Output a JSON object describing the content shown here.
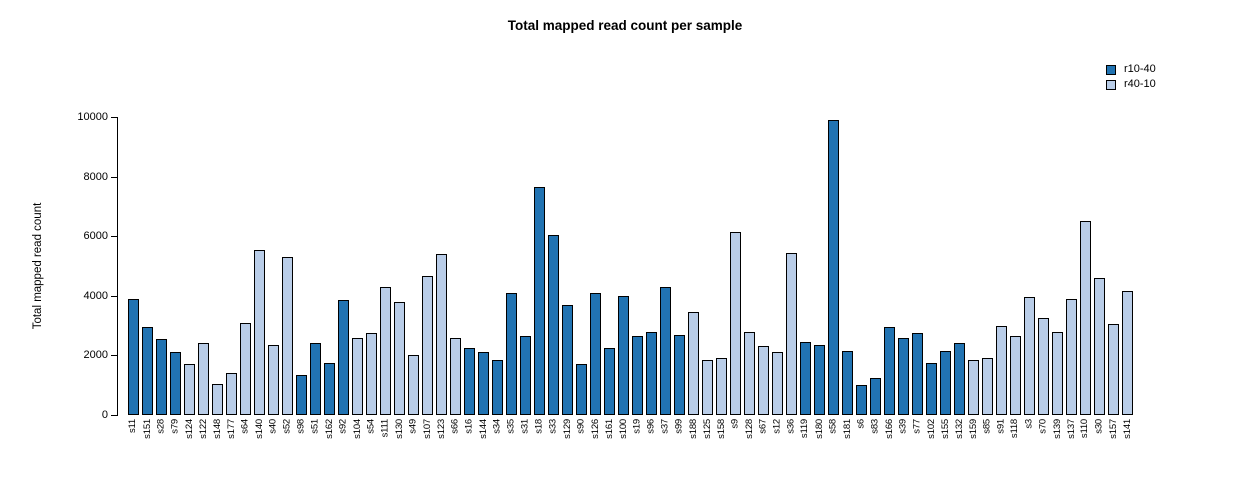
{
  "chart_data": {
    "type": "bar",
    "title": "Total mapped read count per sample",
    "xlabel": "",
    "ylabel": "Total mapped read count",
    "ylim": [
      0,
      10000
    ],
    "yticks": [
      0,
      2000,
      4000,
      6000,
      8000,
      10000
    ],
    "grid": false,
    "legend_position": "top-right",
    "legend": [
      {
        "label": "r10-40",
        "color": "#2173b2"
      },
      {
        "label": "r40-10",
        "color": "#b9cde8"
      }
    ],
    "bar_border_color": "#000000",
    "bars": [
      {
        "label": "s11",
        "value": 3900,
        "group": "r10-40"
      },
      {
        "label": "s151",
        "value": 2950,
        "group": "r10-40"
      },
      {
        "label": "s28",
        "value": 2550,
        "group": "r10-40"
      },
      {
        "label": "s79",
        "value": 2100,
        "group": "r10-40"
      },
      {
        "label": "s124",
        "value": 1700,
        "group": "r40-10"
      },
      {
        "label": "s122",
        "value": 2400,
        "group": "r40-10"
      },
      {
        "label": "s148",
        "value": 1050,
        "group": "r40-10"
      },
      {
        "label": "s177",
        "value": 1400,
        "group": "r40-10"
      },
      {
        "label": "s64",
        "value": 3100,
        "group": "r40-10"
      },
      {
        "label": "s140",
        "value": 5550,
        "group": "r40-10"
      },
      {
        "label": "s40",
        "value": 2350,
        "group": "r40-10"
      },
      {
        "label": "s52",
        "value": 5300,
        "group": "r40-10"
      },
      {
        "label": "s98",
        "value": 1350,
        "group": "r10-40"
      },
      {
        "label": "s51",
        "value": 2400,
        "group": "r10-40"
      },
      {
        "label": "s162",
        "value": 1750,
        "group": "r10-40"
      },
      {
        "label": "s92",
        "value": 3850,
        "group": "r10-40"
      },
      {
        "label": "s104",
        "value": 2600,
        "group": "r40-10"
      },
      {
        "label": "s54",
        "value": 2750,
        "group": "r40-10"
      },
      {
        "label": "s111",
        "value": 4300,
        "group": "r40-10"
      },
      {
        "label": "s130",
        "value": 3800,
        "group": "r40-10"
      },
      {
        "label": "s49",
        "value": 2000,
        "group": "r40-10"
      },
      {
        "label": "s107",
        "value": 4650,
        "group": "r40-10"
      },
      {
        "label": "s123",
        "value": 5400,
        "group": "r40-10"
      },
      {
        "label": "s66",
        "value": 2600,
        "group": "r40-10"
      },
      {
        "label": "s16",
        "value": 2250,
        "group": "r10-40"
      },
      {
        "label": "s144",
        "value": 2100,
        "group": "r10-40"
      },
      {
        "label": "s34",
        "value": 1850,
        "group": "r10-40"
      },
      {
        "label": "s35",
        "value": 4100,
        "group": "r10-40"
      },
      {
        "label": "s31",
        "value": 2650,
        "group": "r10-40"
      },
      {
        "label": "s18",
        "value": 7650,
        "group": "r10-40"
      },
      {
        "label": "s33",
        "value": 6050,
        "group": "r10-40"
      },
      {
        "label": "s129",
        "value": 3700,
        "group": "r10-40"
      },
      {
        "label": "s90",
        "value": 1700,
        "group": "r10-40"
      },
      {
        "label": "s126",
        "value": 4100,
        "group": "r10-40"
      },
      {
        "label": "s161",
        "value": 2250,
        "group": "r10-40"
      },
      {
        "label": "s100",
        "value": 4000,
        "group": "r10-40"
      },
      {
        "label": "s19",
        "value": 2650,
        "group": "r10-40"
      },
      {
        "label": "s96",
        "value": 2800,
        "group": "r10-40"
      },
      {
        "label": "s37",
        "value": 4300,
        "group": "r10-40"
      },
      {
        "label": "s99",
        "value": 2700,
        "group": "r10-40"
      },
      {
        "label": "s188",
        "value": 3450,
        "group": "r40-10"
      },
      {
        "label": "s125",
        "value": 1850,
        "group": "r40-10"
      },
      {
        "label": "s158",
        "value": 1900,
        "group": "r40-10"
      },
      {
        "label": "s9",
        "value": 6150,
        "group": "r40-10"
      },
      {
        "label": "s128",
        "value": 2800,
        "group": "r40-10"
      },
      {
        "label": "s67",
        "value": 2300,
        "group": "r40-10"
      },
      {
        "label": "s12",
        "value": 2100,
        "group": "r40-10"
      },
      {
        "label": "s36",
        "value": 5450,
        "group": "r40-10"
      },
      {
        "label": "s119",
        "value": 2450,
        "group": "r10-40"
      },
      {
        "label": "s180",
        "value": 2350,
        "group": "r10-40"
      },
      {
        "label": "s58",
        "value": 9900,
        "group": "r10-40"
      },
      {
        "label": "s181",
        "value": 2150,
        "group": "r10-40"
      },
      {
        "label": "s6",
        "value": 1000,
        "group": "r10-40"
      },
      {
        "label": "s83",
        "value": 1250,
        "group": "r10-40"
      },
      {
        "label": "s166",
        "value": 2950,
        "group": "r10-40"
      },
      {
        "label": "s39",
        "value": 2600,
        "group": "r10-40"
      },
      {
        "label": "s77",
        "value": 2750,
        "group": "r10-40"
      },
      {
        "label": "s102",
        "value": 1750,
        "group": "r10-40"
      },
      {
        "label": "s155",
        "value": 2150,
        "group": "r10-40"
      },
      {
        "label": "s132",
        "value": 2400,
        "group": "r10-40"
      },
      {
        "label": "s159",
        "value": 1850,
        "group": "r40-10"
      },
      {
        "label": "s85",
        "value": 1900,
        "group": "r40-10"
      },
      {
        "label": "s91",
        "value": 3000,
        "group": "r40-10"
      },
      {
        "label": "s118",
        "value": 2650,
        "group": "r40-10"
      },
      {
        "label": "s3",
        "value": 3950,
        "group": "r40-10"
      },
      {
        "label": "s70",
        "value": 3250,
        "group": "r40-10"
      },
      {
        "label": "s139",
        "value": 2800,
        "group": "r40-10"
      },
      {
        "label": "s137",
        "value": 3900,
        "group": "r40-10"
      },
      {
        "label": "s110",
        "value": 6500,
        "group": "r40-10"
      },
      {
        "label": "s30",
        "value": 4600,
        "group": "r40-10"
      },
      {
        "label": "s157",
        "value": 3050,
        "group": "r40-10"
      },
      {
        "label": "s141",
        "value": 4150,
        "group": "r40-10"
      }
    ]
  }
}
